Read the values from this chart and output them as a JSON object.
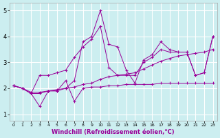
{
  "xlabel": "Windchill (Refroidissement éolien,°C)",
  "bg_color": "#cceef0",
  "line_color": "#990099",
  "grid_color": "#ffffff",
  "xlim": [
    -0.5,
    23.5
  ],
  "ylim": [
    0.75,
    5.3
  ],
  "xticks": [
    0,
    1,
    2,
    3,
    4,
    5,
    6,
    7,
    8,
    9,
    10,
    11,
    12,
    13,
    14,
    15,
    16,
    17,
    18,
    19,
    20,
    21,
    22,
    23
  ],
  "yticks": [
    1,
    2,
    3,
    4,
    5
  ],
  "lines": [
    [
      2.1,
      2.0,
      1.8,
      1.3,
      1.9,
      1.9,
      2.3,
      1.5,
      2.0,
      2.05,
      2.05,
      2.1,
      2.1,
      2.15,
      2.15,
      2.15,
      2.15,
      2.2,
      2.2,
      2.2,
      2.2,
      2.2,
      2.2,
      2.2
    ],
    [
      2.1,
      2.0,
      1.8,
      1.8,
      1.9,
      1.9,
      2.0,
      2.3,
      3.8,
      4.0,
      5.0,
      3.7,
      3.6,
      2.7,
      2.2,
      3.1,
      3.3,
      3.8,
      3.5,
      3.4,
      3.4,
      2.5,
      2.6,
      4.0
    ],
    [
      2.1,
      2.0,
      1.8,
      2.5,
      2.5,
      2.6,
      2.7,
      3.2,
      3.6,
      3.9,
      4.4,
      2.8,
      2.5,
      2.5,
      2.5,
      3.0,
      3.2,
      3.5,
      3.4,
      3.4,
      3.4,
      2.5,
      2.6,
      4.0
    ],
    [
      2.1,
      2.0,
      1.85,
      1.85,
      1.9,
      1.95,
      2.0,
      2.05,
      2.15,
      2.2,
      2.35,
      2.45,
      2.5,
      2.55,
      2.6,
      2.75,
      2.9,
      3.05,
      3.15,
      3.25,
      3.3,
      3.35,
      3.4,
      3.5
    ]
  ],
  "tick_fontsize": 5.5,
  "xlabel_fontsize": 6.0
}
